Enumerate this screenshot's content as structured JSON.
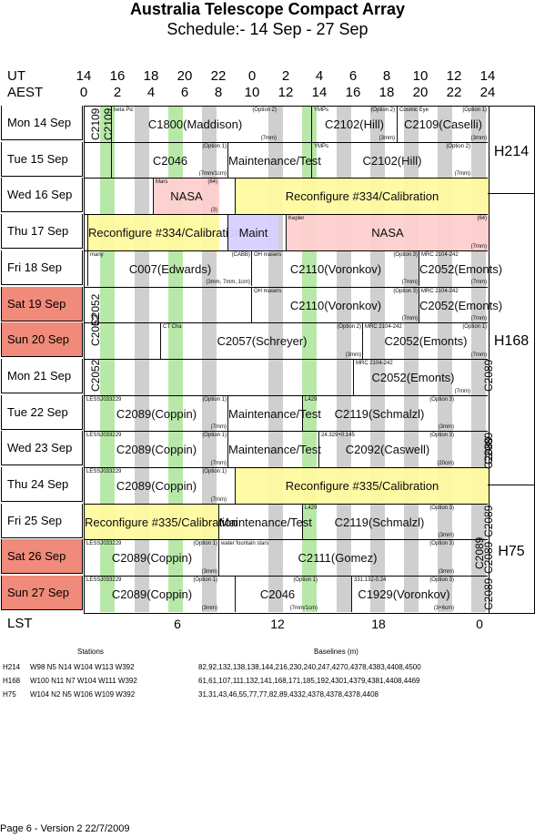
{
  "title": "Australia Telescope Compact Array",
  "subtitle": "Schedule:- 14 Sep - 27 Sep",
  "axis": {
    "ut_label": "UT",
    "aest_label": "AEST",
    "lst_label": "LST",
    "ut_ticks": [
      "14",
      "16",
      "18",
      "20",
      "22",
      "0",
      "2",
      "4",
      "6",
      "8",
      "10",
      "12",
      "14"
    ],
    "aest_ticks": [
      "0",
      "2",
      "4",
      "6",
      "8",
      "10",
      "12",
      "14",
      "16",
      "18",
      "20",
      "22",
      "24"
    ],
    "lst_ticks": [
      "6",
      "12",
      "18",
      "0"
    ]
  },
  "days": [
    {
      "label": "Mon  14 Sep",
      "weekend": false
    },
    {
      "label": "Tue   15 Sep",
      "weekend": false
    },
    {
      "label": "Wed  16 Sep",
      "weekend": false
    },
    {
      "label": "Thu   17 Sep",
      "weekend": false
    },
    {
      "label": "Fri    18 Sep",
      "weekend": false
    },
    {
      "label": "Sat   19 Sep",
      "weekend": true
    },
    {
      "label": "Sun  20 Sep",
      "weekend": true
    },
    {
      "label": "Mon  21 Sep",
      "weekend": false
    },
    {
      "label": "Tue   22 Sep",
      "weekend": false
    },
    {
      "label": "Wed  23 Sep",
      "weekend": false
    },
    {
      "label": "Thu   24 Sep",
      "weekend": false
    },
    {
      "label": "Fri    25 Sep",
      "weekend": false
    },
    {
      "label": "Sat   26 Sep",
      "weekend": true
    },
    {
      "label": "Sun  27 Sep",
      "weekend": true
    }
  ],
  "configs": [
    "H214",
    "H168",
    "H75"
  ],
  "blocks": [
    {
      "row": 0,
      "text": "C1800(Maddison)",
      "note_tl": "beta Pic",
      "note_tr": "(Option 2)",
      "note_br": "(7mm)"
    },
    {
      "row": 0,
      "text": "C2102(Hill)",
      "note_tl": "YMPs",
      "note_tr": "(Option 2)",
      "note_br": "(3mm)"
    },
    {
      "row": 0,
      "text": "C2109(Caselli)",
      "note_tl": "Cosmic Eye",
      "note_tr": "(Option 1)",
      "note_br": "(3mm)"
    },
    {
      "row": 1,
      "text": "C2046",
      "note_tr": "(Option 1)",
      "note_br": "(7mm/1cm)"
    },
    {
      "row": 1,
      "text": "Maintenance/Test"
    },
    {
      "row": 1,
      "text": "C2102(Hill)",
      "note_tl": "YMPs",
      "note_tr": "(Option 2)",
      "note_br": "(7mm)"
    },
    {
      "row": 2,
      "text": "NASA",
      "note_tl": "Mars",
      "note_tr": "(64)",
      "note_br": "(3)"
    },
    {
      "row": 2,
      "text": "Reconfigure #334/Calibration"
    },
    {
      "row": 3,
      "text": "Reconfigure #334/Calibration"
    },
    {
      "row": 3,
      "text": "Maint"
    },
    {
      "row": 3,
      "text": "NASA",
      "note_tl": "Kepler",
      "note_tr": "(64)",
      "note_br": "(7mm)"
    },
    {
      "row": 4,
      "text": "C007(Edwards)",
      "note_tl": "many",
      "note_tr": "(CABB)",
      "note_br": "(3mm, 7mm, 1cm)"
    },
    {
      "row": 4,
      "text": "C2110(Voronkov)",
      "note_tl": "OH masers",
      "note_tr": "(Option 3)",
      "note_br": "(7mm)"
    },
    {
      "row": 4,
      "text": "C2052(Emonts)",
      "note_tl": "MRC 2104-242",
      "note_br": "(7mm)"
    },
    {
      "row": 5,
      "text": "C2110(Voronkov)",
      "note_tl": "OH masers",
      "note_tr": "(Option 3)",
      "note_br": "(7mm)"
    },
    {
      "row": 5,
      "text": "C2052(Emonts)",
      "note_tl": "MRC 2104-242",
      "note_br": "(7mm)"
    },
    {
      "row": 6,
      "text": "C2057(Schreyer)",
      "note_tl": "CT Cha",
      "note_tr": "(Option 2)",
      "note_br": "(3mm)"
    },
    {
      "row": 6,
      "text": "C2052(Emonts)",
      "note_tl": "MRC 2104-242",
      "note_tr": "(Option 1)",
      "note_br": "(7mm)"
    },
    {
      "row": 7,
      "text": "C2052(Emonts)",
      "note_tl": "MRC 2104-242",
      "note_br": "(7mm)"
    },
    {
      "row": 8,
      "text": "C2089(Coppin)",
      "note_tl": "LESSJ033229",
      "note_tr": "(Option 1)",
      "note_br": "(7mm)"
    },
    {
      "row": 8,
      "text": "Maintenance/Test"
    },
    {
      "row": 8,
      "text": "C2119(Schmalzl)",
      "note_tl": "L429",
      "note_tr": "(Option 3)",
      "note_br": "(3mm)"
    },
    {
      "row": 9,
      "text": "C2089(Coppin)",
      "note_tl": "LESSJ033229",
      "note_tr": "(Option 1)",
      "note_br": "(7mm)"
    },
    {
      "row": 9,
      "text": "Maintenance/Test"
    },
    {
      "row": 9,
      "text": "C2092(Caswell)",
      "note_tl": "24.329+0.145",
      "note_tr": "(Option 3)",
      "note_br": "(20cm)"
    },
    {
      "row": 10,
      "text": "C2089(Coppin)",
      "note_tl": "LESSJ033229",
      "note_tr": "(Option 1)",
      "note_br": "(7mm)"
    },
    {
      "row": 10,
      "text": "Reconfigure #335/Calibration"
    },
    {
      "row": 11,
      "text": "Reconfigure #335/Calibration"
    },
    {
      "row": 11,
      "text": "Maintenance/Test"
    },
    {
      "row": 11,
      "text": "C2119(Schmalzl)",
      "note_tl": "L429",
      "note_tr": "(Option 3)",
      "note_br": "(3mm)"
    },
    {
      "row": 12,
      "text": "C2089(Coppin)",
      "note_tl": "LESSJ033229",
      "note_tr": "(Option 1)",
      "note_br": "(3mm)"
    },
    {
      "row": 12,
      "text": "C2111(Gomez)",
      "note_tl": "water fountain stars",
      "note_tr": "(Option 3)",
      "note_br": "(3mm)"
    },
    {
      "row": 13,
      "text": "C2089(Coppin)",
      "note_tl": "LESSJ033229",
      "note_tr": "(Option 1)",
      "note_br": "(3mm)"
    },
    {
      "row": 13,
      "text": "C2046",
      "note_tr": "(Option 1)",
      "note_br": "(7mm/1cm)"
    },
    {
      "row": 13,
      "text": "C1929(Voronkov)",
      "note_tl": "331.132-0.24",
      "note_tr": "(Option 3)",
      "note_br": "(3+6cm)"
    }
  ],
  "vertical_labels": [
    "C2109",
    "C2109",
    "C2052",
    "C2052",
    "C2052",
    "C2089",
    "C2089",
    "C2089",
    "C2089",
    "C2089",
    "C2089",
    "C2089"
  ],
  "stations": {
    "header": "Stations",
    "rows": [
      {
        "config": "H214",
        "stations": "W98 N5 N14 W104 W113 W392"
      },
      {
        "config": "H168",
        "stations": "W100 N11 N7 W104 W111 W392"
      },
      {
        "config": "H75",
        "stations": "W104 N2 N5 W106 W109 W392"
      }
    ]
  },
  "baselines": {
    "header": "Baselines (m)",
    "rows": [
      "82,92,132,138,138,144,216,230,240,247,4270,4378,4383,4408,4500",
      "61,61,107,111,132,141,168,171,185,192,4301,4379,4381,4408,4469",
      "31,31,43,46,55,77,77,82,89,4332,4378,4378,4378,4408"
    ]
  },
  "footer": "Page 6 - Version 2  22/7/2009"
}
